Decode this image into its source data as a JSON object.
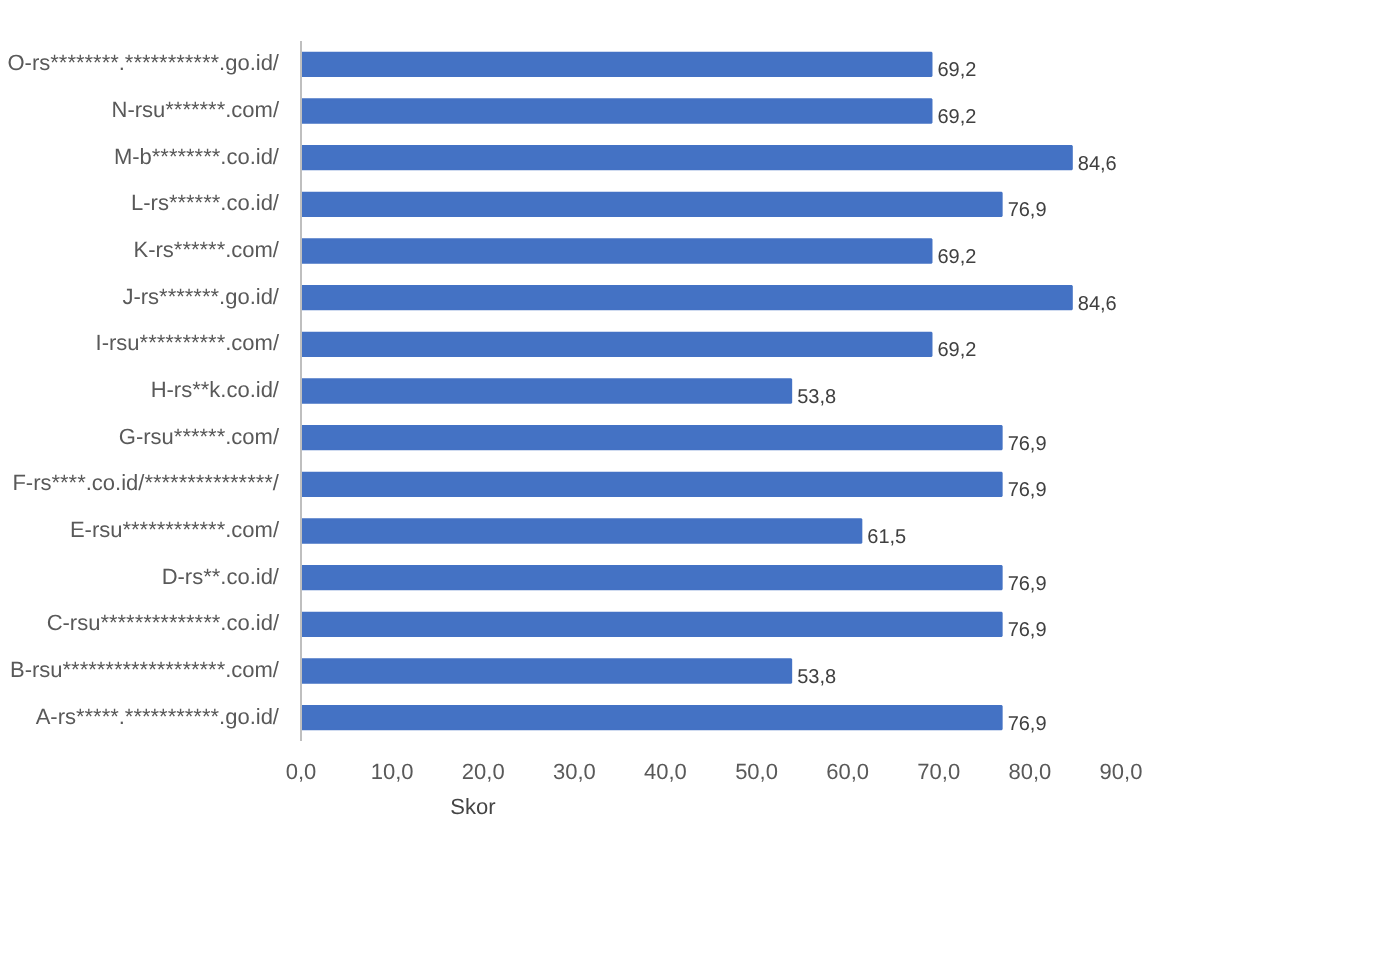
{
  "chart_data": {
    "type": "bar",
    "orientation": "horizontal",
    "categories": [
      "O-rs********.***********.go.id/",
      "N-rsu*******.com/",
      "M-b********.co.id/",
      "L-rs******.co.id/",
      "K-rs******.com/",
      "J-rs*******.go.id/",
      "I-rsu**********.com/",
      "H-rs**k.co.id/",
      "G-rsu******.com/",
      "F-rs****.co.id/***************/",
      "E-rsu************.com/",
      "D-rs**.co.id/",
      "C-rsu**************.co.id/",
      "B-rsu*******************.com/",
      "A-rs*****.***********.go.id/"
    ],
    "series": [
      {
        "name": "Skor",
        "color": "#4472c4",
        "values": [
          69.2,
          69.2,
          84.6,
          76.9,
          69.2,
          84.6,
          69.2,
          53.8,
          76.9,
          76.9,
          61.5,
          76.9,
          76.9,
          53.8,
          76.9
        ],
        "value_labels": [
          "69,2",
          "69,2",
          "84,6",
          "76,9",
          "69,2",
          "84,6",
          "69,2",
          "53,8",
          "76,9",
          "76,9",
          "61,5",
          "76,9",
          "76,9",
          "53,8",
          "76,9"
        ]
      }
    ],
    "xlim": [
      0,
      90
    ],
    "xticks": [
      {
        "value": 0,
        "label": "0,0"
      },
      {
        "value": 10,
        "label": "10,0"
      },
      {
        "value": 20,
        "label": "20,0"
      },
      {
        "value": 30,
        "label": "30,0"
      },
      {
        "value": 40,
        "label": "40,0"
      },
      {
        "value": 50,
        "label": "50,0"
      },
      {
        "value": 60,
        "label": "60,0"
      },
      {
        "value": 70,
        "label": "70,0"
      },
      {
        "value": 80,
        "label": "80,0"
      },
      {
        "value": 90,
        "label": "90,0"
      }
    ],
    "grid": false,
    "legend": "bottom"
  }
}
